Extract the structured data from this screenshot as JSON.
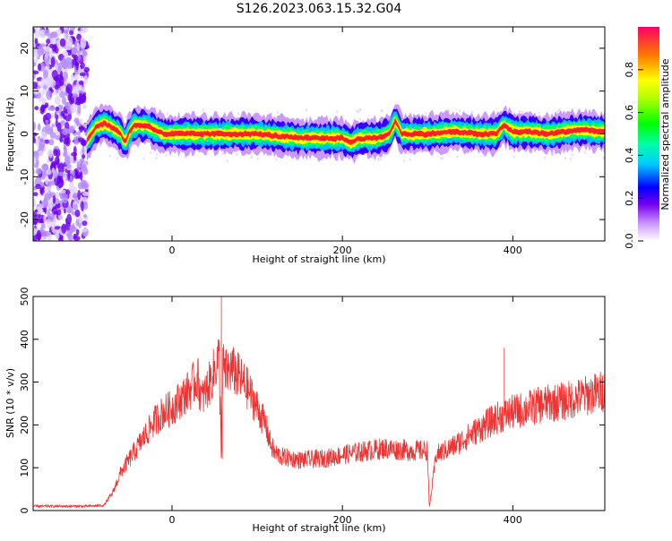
{
  "title": "S126.2023.063.15.32.G04",
  "chart_data": [
    {
      "type": "heatmap",
      "name": "spectrogram",
      "xlabel": "Height of straight line (km)",
      "ylabel": "Frequency (Hz)",
      "xlim": [
        -163,
        508
      ],
      "ylim": [
        -25,
        25
      ],
      "xticks": [
        0,
        200,
        400
      ],
      "yticks": [
        -20,
        -10,
        0,
        10,
        20
      ],
      "colorbar": {
        "label": "Normalized spectral amplitude",
        "range": [
          0,
          1
        ],
        "ticks": [
          0.0,
          0.2,
          0.4,
          0.6,
          0.8
        ]
      },
      "ridge": {
        "x": [
          -100,
          -90,
          -80,
          -70,
          -60,
          -55,
          -50,
          -45,
          -40,
          -35,
          -30,
          -20,
          -10,
          0,
          50,
          100,
          150,
          190,
          200,
          210,
          220,
          240,
          255,
          262,
          270,
          300,
          330,
          360,
          380,
          390,
          400,
          420,
          440,
          460,
          480,
          508
        ],
        "y": [
          -1.5,
          1.5,
          2.5,
          1.5,
          0,
          -2,
          0.5,
          2,
          2,
          2,
          2,
          1,
          0,
          0,
          0,
          0,
          -1,
          -1,
          -1,
          -2,
          -1,
          -1,
          0,
          3,
          0,
          0,
          0.5,
          0,
          0,
          2,
          0.5,
          0.5,
          0,
          0.5,
          1,
          0.5
        ]
      }
    },
    {
      "type": "line",
      "name": "snr",
      "xlabel": "Height of straight line (km)",
      "ylabel": "SNR (10 * v/v)",
      "xlim": [
        -163,
        508
      ],
      "ylim": [
        0,
        500
      ],
      "xticks": [
        0,
        200,
        400
      ],
      "yticks": [
        0,
        100,
        200,
        300,
        400,
        500
      ],
      "color": "#ee3333",
      "series": {
        "x": [
          -163,
          -140,
          -120,
          -100,
          -80,
          -70,
          -60,
          -50,
          -40,
          -30,
          -20,
          -10,
          0,
          10,
          20,
          30,
          35,
          40,
          45,
          50,
          55,
          58,
          60,
          62,
          70,
          80,
          90,
          100,
          110,
          115,
          120,
          130,
          150,
          180,
          200,
          230,
          250,
          280,
          300,
          302,
          310,
          330,
          360,
          380,
          400,
          420,
          440,
          460,
          480,
          508
        ],
        "y": [
          10,
          10,
          10,
          10,
          12,
          40,
          90,
          120,
          150,
          180,
          210,
          230,
          240,
          260,
          280,
          310,
          260,
          280,
          300,
          330,
          360,
          130,
          350,
          320,
          330,
          310,
          280,
          240,
          200,
          160,
          135,
          125,
          118,
          122,
          130,
          140,
          145,
          140,
          140,
          5,
          130,
          150,
          190,
          215,
          230,
          240,
          250,
          255,
          265,
          280
        ]
      }
    }
  ]
}
